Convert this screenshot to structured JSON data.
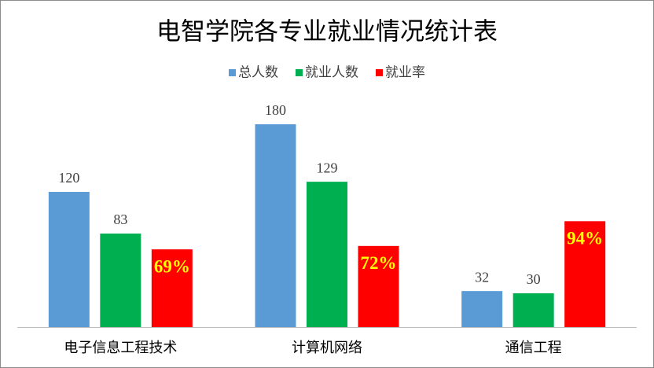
{
  "chart_data": {
    "type": "bar",
    "title": "电智学院各专业就业情况统计表",
    "categories": [
      "电子信息工程技术",
      "计算机网络",
      "通信工程"
    ],
    "series": [
      {
        "name": "总人数",
        "color": "#5b9bd5",
        "values": [
          120,
          180,
          32
        ]
      },
      {
        "name": "就业人数",
        "color": "#00b050",
        "values": [
          83,
          129,
          30
        ]
      },
      {
        "name": "就业率",
        "color": "#ff0000",
        "values": [
          69,
          72,
          94
        ],
        "value_labels": [
          "69%",
          "72%",
          "94%"
        ]
      }
    ],
    "ylim": [
      0,
      200
    ],
    "legend": "top"
  }
}
